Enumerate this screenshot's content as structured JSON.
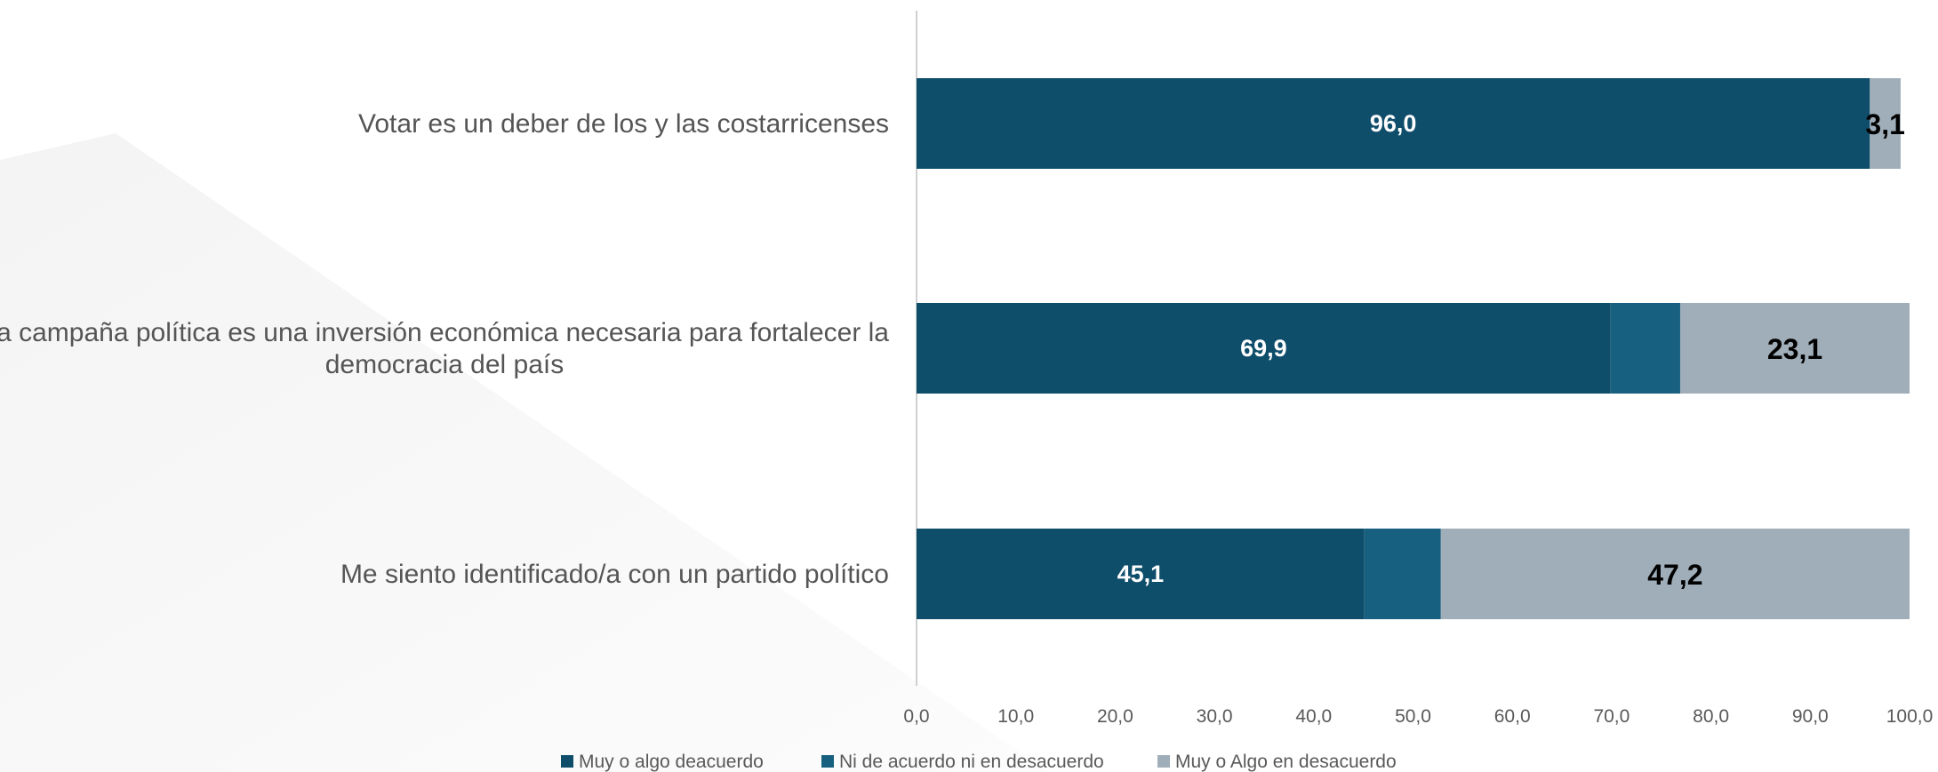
{
  "chart_data": {
    "type": "bar",
    "orientation": "horizontal",
    "stacked": true,
    "categories": [
      "Votar es un deber de los y las costarricenses",
      "La campaña política es una inversión económica necesaria para fortalecer la democracia del país",
      "Me siento identificado/a con un partido político"
    ],
    "category_lines": [
      [
        "Votar es un deber de los y las costarricenses"
      ],
      [
        "La campaña política es una inversión económica necesaria para fortalecer la",
        "democracia del país"
      ],
      [
        "Me siento identificado/a con un partido político"
      ]
    ],
    "series": [
      {
        "name": "Muy  o algo deacuerdo",
        "color": "#0f4e6b",
        "values": [
          96.0,
          69.9,
          45.1
        ],
        "labels": [
          "96,0",
          "69,9",
          "45,1"
        ],
        "label_color": "#ffffff"
      },
      {
        "name": "Ni de acuerdo ni en desacuerdo",
        "color": "#17607f",
        "values": [
          0.0,
          7.0,
          7.7
        ],
        "labels": [
          "",
          "",
          ""
        ],
        "label_color": "#ffffff"
      },
      {
        "name": "Muy o Algo en desacuerdo",
        "color": "#a0aeb9",
        "values": [
          3.1,
          23.1,
          47.2
        ],
        "labels": [
          "3,1",
          "23,1",
          "47,2"
        ],
        "label_color": "#000000"
      }
    ],
    "x_ticks": [
      "0,0",
      "10,0",
      "20,0",
      "30,0",
      "40,0",
      "50,0",
      "60,0",
      "70,0",
      "80,0",
      "90,0",
      "100,0"
    ],
    "xlim": [
      0,
      100
    ],
    "grid": false,
    "legend": "bottom"
  }
}
